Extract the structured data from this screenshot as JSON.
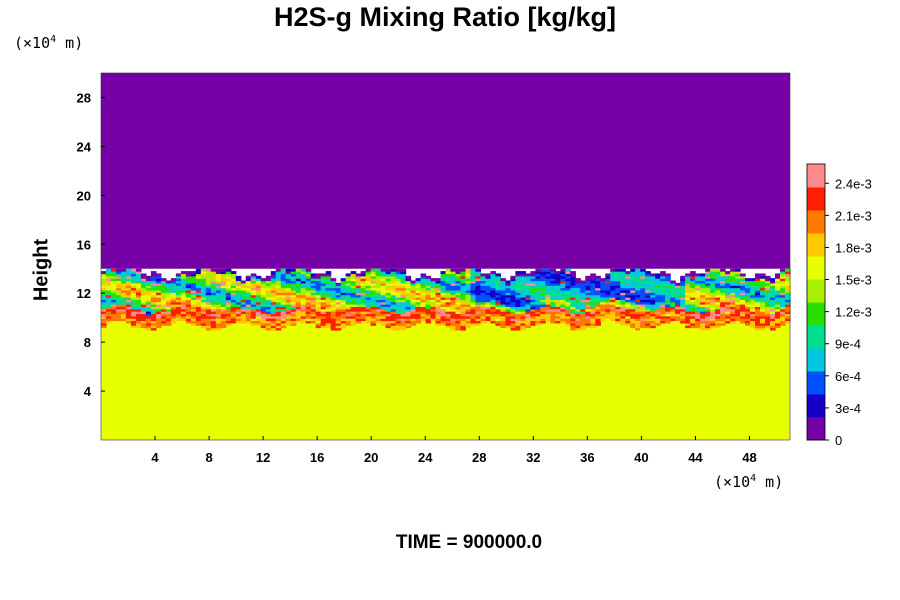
{
  "chart_data": {
    "type": "heatmap",
    "title": "H2S-g Mixing Ratio [kg/kg]",
    "ylabel": "Height",
    "y_unit": {
      "prefix": "(×10",
      "exp": "4",
      "suffix": " m)"
    },
    "x_unit": {
      "prefix": "(×10",
      "exp": "4",
      "suffix": " m)"
    },
    "x_ticks": [
      "4",
      "8",
      "12",
      "16",
      "20",
      "24",
      "28",
      "32",
      "36",
      "40",
      "44",
      "48"
    ],
    "y_ticks": [
      "4",
      "8",
      "12",
      "16",
      "20",
      "24",
      "28"
    ],
    "xlim": [
      0,
      51
    ],
    "ylim": [
      0,
      30
    ],
    "colorbar": {
      "range": [
        0,
        0.00258
      ],
      "tick_values": [
        0,
        0.0003,
        0.0006,
        0.0009,
        0.0012,
        0.0015,
        0.0018,
        0.0021,
        0.0024
      ],
      "tick_labels": [
        "0",
        "3e-4",
        "6e-4",
        "9e-4",
        "1.2e-3",
        "1.5e-3",
        "1.8e-3",
        "2.1e-3",
        "2.4e-3"
      ],
      "colors": [
        "#7400a6",
        "#1400c8",
        "#0050ff",
        "#00c8e0",
        "#00e090",
        "#28e000",
        "#a8f000",
        "#e8ff00",
        "#ffc800",
        "#ff7800",
        "#ff1e00",
        "#ff8c8c"
      ]
    },
    "fields": {
      "upper_layer": {
        "value": 0,
        "y_min": 14,
        "y_max": 30
      },
      "lower_layer": {
        "value": 0.0017,
        "y_min": 0,
        "y_max": 10
      },
      "mixing_zone": {
        "value_range": [
          0,
          0.0025
        ],
        "y_min": 9,
        "y_max": 14
      }
    },
    "footer": "TIME = 900000.0"
  }
}
